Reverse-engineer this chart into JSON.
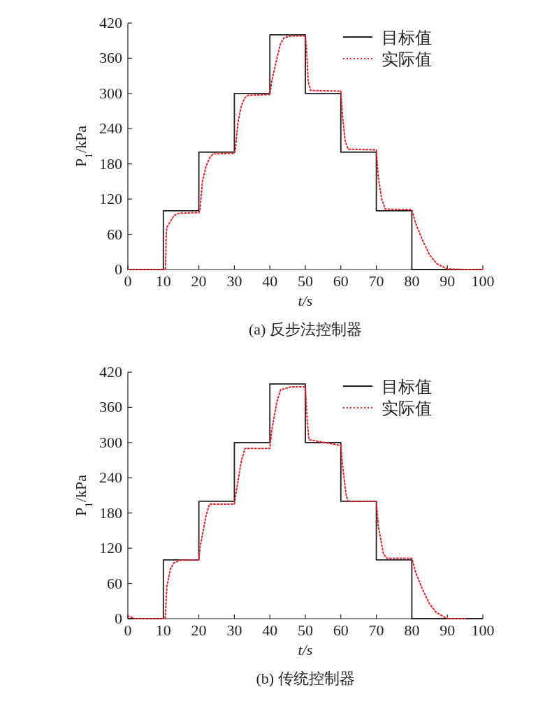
{
  "chart_data": [
    {
      "type": "line",
      "title": "(a) 反步法控制器",
      "xlabel": "t/s",
      "ylabel": "P$_{1}$/kPa",
      "xlim": [
        0,
        100
      ],
      "ylim": [
        0,
        420
      ],
      "xticks": [
        0,
        10,
        20,
        30,
        40,
        50,
        60,
        70,
        80,
        90,
        100
      ],
      "yticks": [
        0,
        60,
        120,
        180,
        240,
        300,
        360,
        420
      ],
      "grid": false,
      "legend": "top right",
      "series": [
        {
          "name": "目标值",
          "type": "step",
          "color": "#231f20",
          "line_style": "solid",
          "x": [
            0,
            10,
            20,
            30,
            40,
            50,
            60,
            70,
            80,
            100
          ],
          "values": [
            0,
            100,
            200,
            300,
            400,
            300,
            200,
            100,
            0,
            0
          ]
        },
        {
          "name": "实际值",
          "color": "#e8202a",
          "line_style": "dotted",
          "x": [
            0,
            10,
            10.6,
            10.8,
            11,
            12,
            13,
            14,
            15,
            20,
            20.3,
            21,
            22,
            23,
            24,
            30,
            30.3,
            31,
            32,
            33,
            34,
            40,
            40.5,
            42,
            43,
            44,
            46,
            50,
            50.3,
            50.8,
            51.5,
            60,
            60.5,
            61.2,
            62,
            70,
            70.5,
            71.5,
            72.5,
            80,
            81,
            83,
            85,
            87,
            90,
            95,
            100
          ],
          "values": [
            0,
            0,
            0,
            60,
            72,
            82,
            92,
            95,
            96,
            97,
            100,
            150,
            175,
            190,
            197,
            198,
            205,
            250,
            280,
            293,
            297,
            298,
            320,
            360,
            385,
            395,
            398,
            398,
            380,
            320,
            305,
            304,
            260,
            220,
            205,
            204,
            160,
            120,
            103,
            102,
            80,
            50,
            25,
            10,
            1,
            0,
            0
          ]
        }
      ]
    },
    {
      "type": "line",
      "title": "(b) 传统控制器",
      "xlabel": "t/s",
      "ylabel": "P$_{1}$/kPa",
      "xlim": [
        0,
        100
      ],
      "ylim": [
        0,
        420
      ],
      "xticks": [
        0,
        10,
        20,
        30,
        40,
        50,
        60,
        70,
        80,
        90,
        100
      ],
      "yticks": [
        0,
        60,
        120,
        180,
        240,
        300,
        360,
        420
      ],
      "grid": false,
      "legend": "top right",
      "series": [
        {
          "name": "目标值",
          "type": "step",
          "color": "#231f20",
          "line_style": "solid",
          "x": [
            0,
            10,
            20,
            30,
            40,
            50,
            60,
            70,
            80,
            100
          ],
          "values": [
            0,
            100,
            200,
            300,
            400,
            300,
            200,
            100,
            0,
            0
          ]
        },
        {
          "name": "实际值",
          "color": "#e8202a",
          "line_style": "dotted",
          "x": [
            0,
            2,
            10,
            10.5,
            11,
            12,
            13,
            15,
            20,
            20.3,
            22,
            23,
            30,
            30.5,
            32,
            33,
            40,
            40.5,
            42,
            43,
            46,
            50,
            50.5,
            51,
            60,
            60.5,
            61.5,
            62,
            70,
            70.5,
            72,
            73,
            80,
            81,
            83,
            85,
            87,
            90,
            95
          ],
          "values": [
            5,
            0,
            0,
            0,
            55,
            85,
            95,
            100,
            100,
            120,
            175,
            195,
            195,
            215,
            270,
            290,
            290,
            320,
            370,
            390,
            395,
            395,
            340,
            305,
            295,
            260,
            210,
            200,
            200,
            160,
            110,
            103,
            103,
            80,
            50,
            25,
            10,
            0,
            0
          ]
        }
      ]
    }
  ]
}
